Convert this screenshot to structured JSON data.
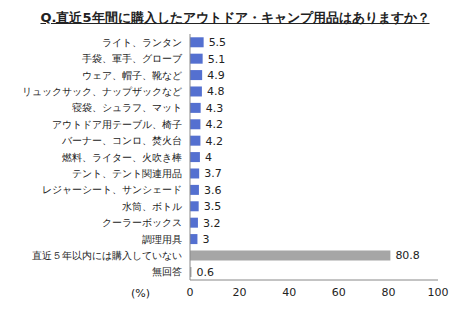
{
  "chart_data": {
    "type": "bar",
    "title": "Q.直近5年間に購入したアウトドア・キャンプ用品はありますか？",
    "x_label": "(%)",
    "orientation": "horizontal",
    "categories": [
      "ライト、ランタン",
      "手袋、軍手、グローブ",
      "ウェア、帽子、靴など",
      "リュックサック、ナップザックなど",
      "寝袋、シュラフ、マット",
      "アウトドア用テーブル、椅子",
      "バーナー、コンロ、焚火台",
      "燃料、ライター、火吹き棒",
      "テント、テント関連用品",
      "レジャーシート、サンシェード",
      "水筒、ボトル",
      "クーラーボックス",
      "調理用具",
      "直近５年以内には購入していない",
      "無回答"
    ],
    "values": [
      5.5,
      5.1,
      4.9,
      4.8,
      4.3,
      4.2,
      4.2,
      4.0,
      3.7,
      3.6,
      3.5,
      3.2,
      3.0,
      80.8,
      0.6
    ],
    "colors": [
      "#5470d0",
      "#5470d0",
      "#5470d0",
      "#5470d0",
      "#5470d0",
      "#5470d0",
      "#5470d0",
      "#5470d0",
      "#5470d0",
      "#5470d0",
      "#5470d0",
      "#5470d0",
      "#5470d0",
      "#a6a6a6",
      "#a6a6a6"
    ],
    "xlim": [
      0,
      100
    ],
    "xticks": [
      0,
      20,
      40,
      60,
      80,
      100
    ],
    "grid": false,
    "data_labels": true
  }
}
